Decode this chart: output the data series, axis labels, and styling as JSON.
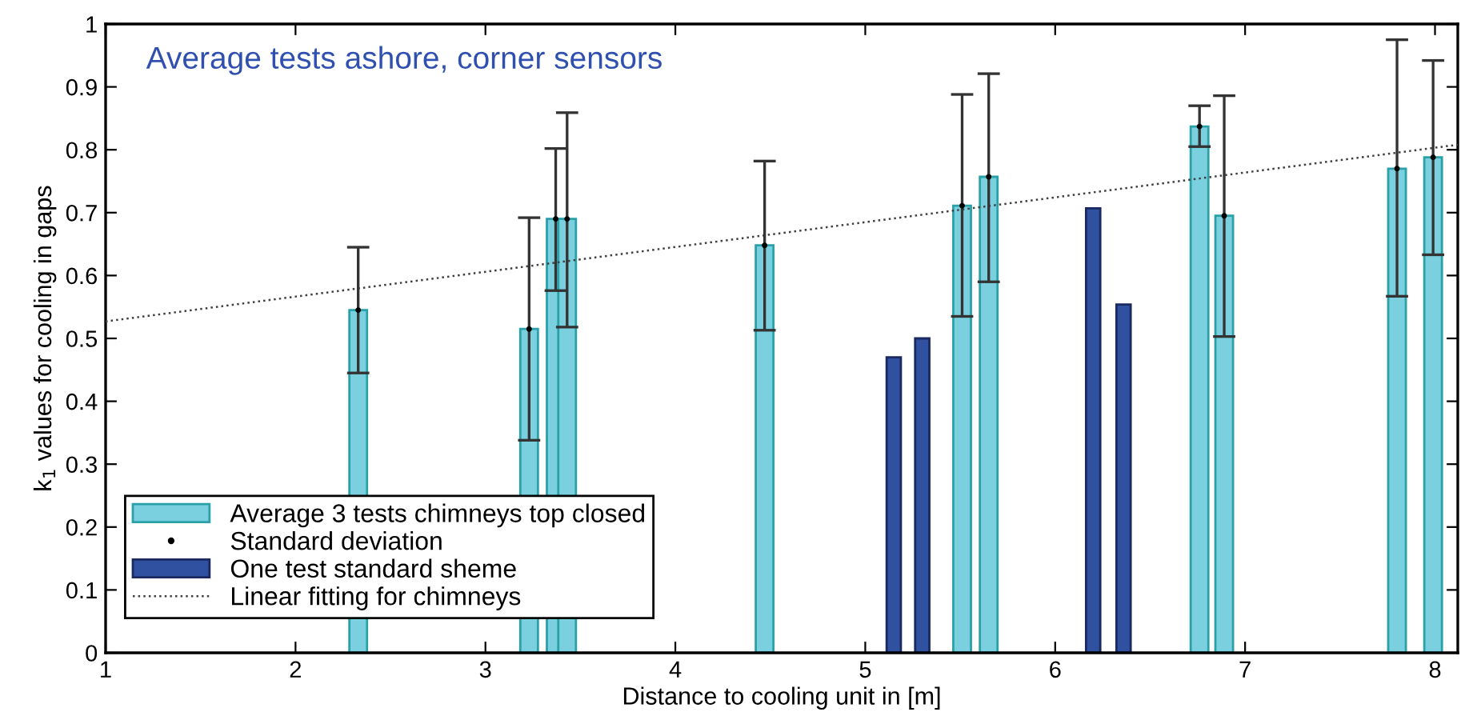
{
  "chart_data": {
    "type": "bar",
    "title": "Average tests ashore, corner sensors",
    "xlabel": "Distance to cooling unit in [m]",
    "ylabel": "k$_{1}$ values for cooling in gaps",
    "series": [
      {
        "name": "Average 3 tests chimneys top closed",
        "color": "#7bd0df",
        "x": [
          2.33,
          3.23,
          3.37,
          3.43,
          4.47,
          5.51,
          5.65,
          6.76,
          6.89,
          7.8,
          7.99
        ],
        "values": [
          0.545,
          0.515,
          0.69,
          0.69,
          0.648,
          0.711,
          0.757,
          0.837,
          0.695,
          0.77,
          0.788
        ]
      },
      {
        "name": "Standard deviation",
        "type": "scatter",
        "color": "#000000",
        "marker": "circle",
        "x": [
          2.33,
          3.23,
          3.37,
          3.43,
          4.47,
          5.51,
          5.65,
          6.76,
          6.89,
          7.8,
          7.99
        ],
        "values": [
          0.545,
          0.515,
          0.69,
          0.69,
          0.648,
          0.711,
          0.757,
          0.837,
          0.695,
          0.77,
          0.788
        ],
        "errors": [
          [
            0.445,
            0.645
          ],
          [
            0.338,
            0.692
          ],
          [
            0.576,
            0.802
          ],
          [
            0.518,
            0.859
          ],
          [
            0.513,
            0.782
          ],
          [
            0.535,
            0.888
          ],
          [
            0.59,
            0.921
          ],
          [
            0.805,
            0.87
          ],
          [
            0.503,
            0.886
          ],
          [
            0.567,
            0.975
          ],
          [
            0.633,
            0.942
          ]
        ]
      },
      {
        "name": "One test standard sheme",
        "color": "#3050a0",
        "x": [
          5.15,
          5.3,
          6.2,
          6.36
        ],
        "values": [
          0.47,
          0.5,
          0.707,
          0.554
        ]
      },
      {
        "name": "Linear fitting for chimneys",
        "type": "line",
        "color": "#404040",
        "line_style": "dotted",
        "x": [
          1,
          8.12
        ],
        "values": [
          0.527,
          0.808
        ]
      }
    ],
    "xlim": [
      1,
      8.12
    ],
    "xticks": [
      1,
      2,
      3,
      4,
      5,
      6,
      7,
      8
    ],
    "ylim": [
      0,
      1
    ],
    "yticks": [
      0,
      0.1,
      0.2,
      0.3,
      0.4,
      0.5,
      0.6,
      0.7,
      0.8,
      0.9,
      1
    ],
    "grid": false,
    "legend": "bottom left"
  }
}
